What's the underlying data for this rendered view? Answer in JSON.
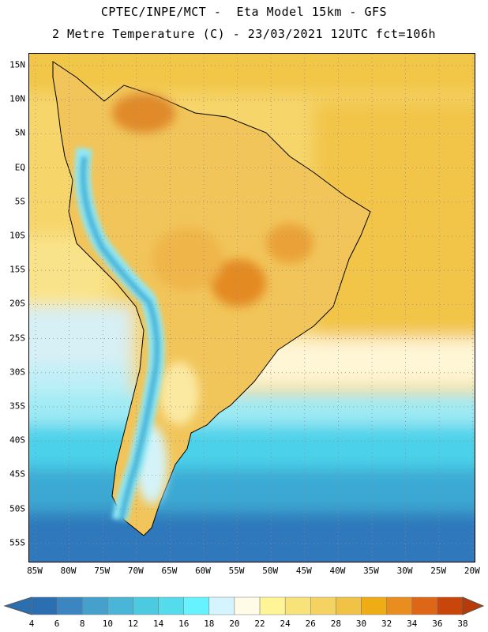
{
  "header": {
    "line1": "CPTEC/INPE/MCT -  Eta Model 15km - GFS",
    "line2": "2 Metre Temperature (C) - 23/03/2021 12UTC fct=106h"
  },
  "map": {
    "lat_labels": [
      "15N",
      "10N",
      "5N",
      "EQ",
      "5S",
      "10S",
      "15S",
      "20S",
      "25S",
      "30S",
      "35S",
      "40S",
      "45S",
      "50S",
      "55S"
    ],
    "lon_labels": [
      "85W",
      "80W",
      "75W",
      "70W",
      "65W",
      "60W",
      "55W",
      "50W",
      "45W",
      "40W",
      "35W",
      "30W",
      "25W",
      "20W"
    ],
    "grid": "dotted",
    "colors": {
      "ocean_tropical": "#f6d56a",
      "ocean_warm": "#f0c43e",
      "continent": "#f2c860",
      "hot_spot": "#e07b1a",
      "very_hot": "#cf5a10",
      "andes_cold": "#44b4d8",
      "andes_cool": "#8fe8f5",
      "south_ocean": "#3ec8e6",
      "southern_deep": "#2f7ec0"
    }
  },
  "colorbar": {
    "labels": [
      "4",
      "6",
      "8",
      "10",
      "12",
      "14",
      "16",
      "18",
      "20",
      "22",
      "24",
      "26",
      "28",
      "30",
      "32",
      "34",
      "36",
      "38"
    ],
    "colors": [
      "#2c6fb0",
      "#3b86c0",
      "#45a0cc",
      "#4ab5d6",
      "#4ccae0",
      "#55dcec",
      "#66f2ff",
      "#d4f5ff",
      "#fffbe6",
      "#fff596",
      "#f8e37b",
      "#f5d363",
      "#f0c246",
      "#f0ac14",
      "#ea8d21",
      "#dd6617",
      "#c8460a"
    ],
    "left_arrow_color": "#2c6fb0",
    "right_arrow_color": "#b83a08"
  }
}
